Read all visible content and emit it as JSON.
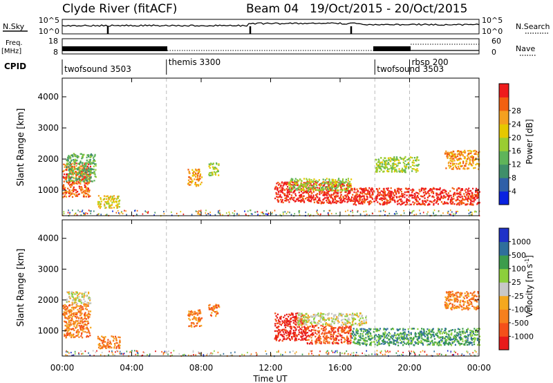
{
  "header": {
    "title": "Clyde River (fitACF)",
    "beam": "Beam 04",
    "dates": "19/Oct/2015 - 20/Oct/2015"
  },
  "labels": {
    "nsky": "N.Sky",
    "nsearch": "N.Search",
    "freq1": "Freq.",
    "freq2": "[MHz]",
    "nave": "Nave",
    "cpid": "CPID",
    "power_label": "Power [dB]",
    "velocity_label": "Velocity [m s",
    "velocity_exp": "-1",
    "velocity_close": "]",
    "slant_range": "Slant Range [km]",
    "time_ut": "Time UT"
  },
  "noise_panel": {
    "left_ticks": [
      "10^5",
      "10^0"
    ],
    "right_ticks": [
      "10^5",
      "10^0"
    ]
  },
  "freq_panel": {
    "left_ticks": [
      "18",
      "8"
    ],
    "right_ticks": [
      "60",
      "0"
    ]
  },
  "cpid_segments": [
    {
      "label": "twofsound 3503",
      "start_hour": 0
    },
    {
      "label": "themis 3300",
      "start_hour": 6
    },
    {
      "label": "twofsound 3503",
      "start_hour": 18
    },
    {
      "label": "rbsp 200",
      "start_hour": 20
    }
  ],
  "colors": {
    "power": [
      "#0a22e0",
      "#2f5fa8",
      "#3f8f6a",
      "#5fb45a",
      "#9acd32",
      "#e6c800",
      "#f5a020",
      "#f26010",
      "#ee1c1c"
    ],
    "velocity": [
      "#e81a1a",
      "#f4501a",
      "#f6801e",
      "#f4a81e",
      "#c8c8c8",
      "#8ccf3c",
      "#3c9c4c",
      "#2f6f9c",
      "#1f32c8"
    ]
  },
  "chart_data": [
    {
      "type": "heatmap",
      "parameter": "Power",
      "unit": "dB",
      "xlabel": "Time UT",
      "ylabel": "Slant Range [km]",
      "xlim": [
        0,
        24
      ],
      "ylim": [
        180,
        4600
      ],
      "x_ticks": [
        "00:00",
        "04:00",
        "08:00",
        "12:00",
        "16:00",
        "20:00",
        "00:00"
      ],
      "y_ticks": [
        1000,
        2000,
        3000,
        4000
      ],
      "colorbar_ticks": [
        "4",
        "8",
        "12",
        "16",
        "20",
        "24",
        "28"
      ],
      "scatter_regions": [
        {
          "t0": 0.0,
          "t1": 1.6,
          "r0": 800,
          "r1": 1900,
          "level": 7
        },
        {
          "t0": 0.2,
          "t1": 1.9,
          "r0": 1300,
          "r1": 2200,
          "level": 3
        },
        {
          "t0": 2.0,
          "t1": 3.3,
          "r0": 450,
          "r1": 850,
          "level": 5
        },
        {
          "t0": 7.2,
          "t1": 8.0,
          "r0": 1150,
          "r1": 1700,
          "level": 6
        },
        {
          "t0": 8.4,
          "t1": 9.0,
          "r0": 1500,
          "r1": 1900,
          "level": 4
        },
        {
          "t0": 12.2,
          "t1": 16.6,
          "r0": 600,
          "r1": 1300,
          "level": 8
        },
        {
          "t0": 13.0,
          "t1": 16.6,
          "r0": 1000,
          "r1": 1400,
          "level": 4
        },
        {
          "t0": 16.6,
          "t1": 24.0,
          "r0": 550,
          "r1": 1100,
          "level": 8
        },
        {
          "t0": 18.0,
          "t1": 20.5,
          "r0": 1600,
          "r1": 2100,
          "level": 4
        },
        {
          "t0": 22.0,
          "t1": 24.0,
          "r0": 1700,
          "r1": 2300,
          "level": 6
        }
      ]
    },
    {
      "type": "heatmap",
      "parameter": "Velocity",
      "unit": "m s^-1",
      "xlabel": "Time UT",
      "ylabel": "Slant Range [km]",
      "xlim": [
        0,
        24
      ],
      "ylim": [
        180,
        4600
      ],
      "x_ticks": [
        "00:00",
        "04:00",
        "08:00",
        "12:00",
        "16:00",
        "20:00",
        "00:00"
      ],
      "y_ticks": [
        1000,
        2000,
        3000,
        4000
      ],
      "colorbar_ticks": [
        "-1000",
        "-500",
        "-100",
        "-25",
        "25",
        "100",
        "500",
        "1000"
      ],
      "scatter_regions": [
        {
          "t0": 0.0,
          "t1": 1.6,
          "r0": 800,
          "r1": 1900,
          "level": 2
        },
        {
          "t0": 0.2,
          "t1": 1.6,
          "r0": 1900,
          "r1": 2300,
          "level": 4
        },
        {
          "t0": 2.0,
          "t1": 3.3,
          "r0": 450,
          "r1": 850,
          "level": 2
        },
        {
          "t0": 7.2,
          "t1": 8.0,
          "r0": 1150,
          "r1": 1700,
          "level": 2
        },
        {
          "t0": 8.4,
          "t1": 9.0,
          "r0": 1500,
          "r1": 1900,
          "level": 2
        },
        {
          "t0": 12.2,
          "t1": 14.0,
          "r0": 700,
          "r1": 1600,
          "level": 0
        },
        {
          "t0": 14.0,
          "t1": 16.6,
          "r0": 600,
          "r1": 1200,
          "level": 1
        },
        {
          "t0": 13.5,
          "t1": 17.5,
          "r0": 1200,
          "r1": 1600,
          "level": 4
        },
        {
          "t0": 16.6,
          "t1": 24.0,
          "r0": 550,
          "r1": 1100,
          "level": 6
        },
        {
          "t0": 22.0,
          "t1": 24.0,
          "r0": 1700,
          "r1": 2300,
          "level": 2
        }
      ]
    }
  ]
}
